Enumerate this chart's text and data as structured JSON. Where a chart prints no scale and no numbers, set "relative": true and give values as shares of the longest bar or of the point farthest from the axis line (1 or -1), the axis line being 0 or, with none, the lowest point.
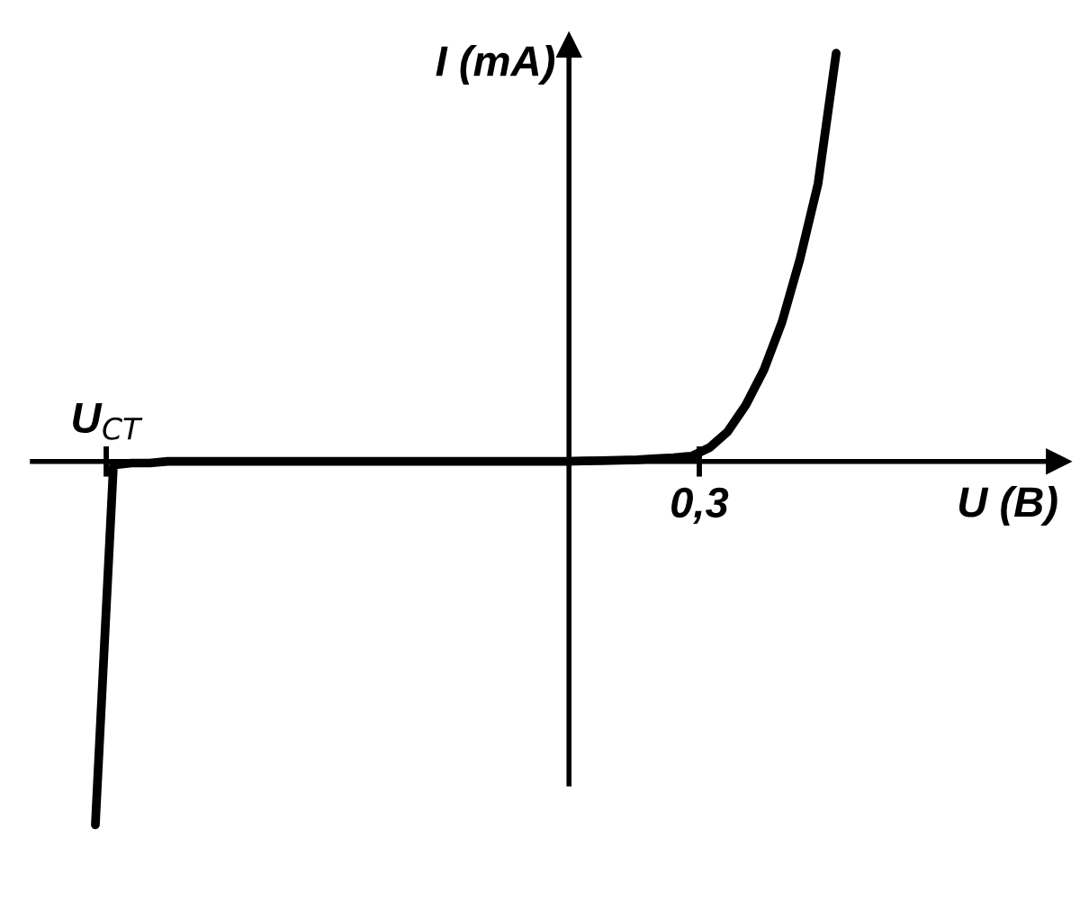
{
  "chart_data": {
    "type": "line",
    "xlabel": "U (B)",
    "ylabel": "I (mA)",
    "relative": true,
    "categories": [
      null,
      null,
      null,
      null,
      null,
      null,
      null,
      null,
      null,
      null,
      null,
      null,
      null,
      null,
      null,
      null,
      null,
      null,
      null,
      null,
      null,
      null,
      null,
      null,
      null,
      null,
      null,
      null,
      null,
      null,
      null,
      null,
      null,
      null,
      null,
      null,
      null,
      null,
      null,
      null,
      null,
      null
    ],
    "series": [
      {
        "color": "#000000",
        "values": [
          -0.89,
          -0.009,
          -0.004,
          -0.004,
          0,
          0,
          0,
          0,
          0,
          0,
          0,
          0,
          0,
          0,
          0,
          0,
          0,
          0,
          0,
          0,
          0,
          0,
          0,
          0,
          0,
          0,
          0,
          0.001,
          0.002,
          0.003,
          0.004,
          0.007,
          0.009,
          0.013,
          0.034,
          0.073,
          0.138,
          0.224,
          0.341,
          0.496,
          0.681,
          1.0
        ]
      }
    ],
    "annotations": [
      "U$_{CT}$",
      "0,3"
    ],
    "marker": "none",
    "line_style": "solid"
  }
}
